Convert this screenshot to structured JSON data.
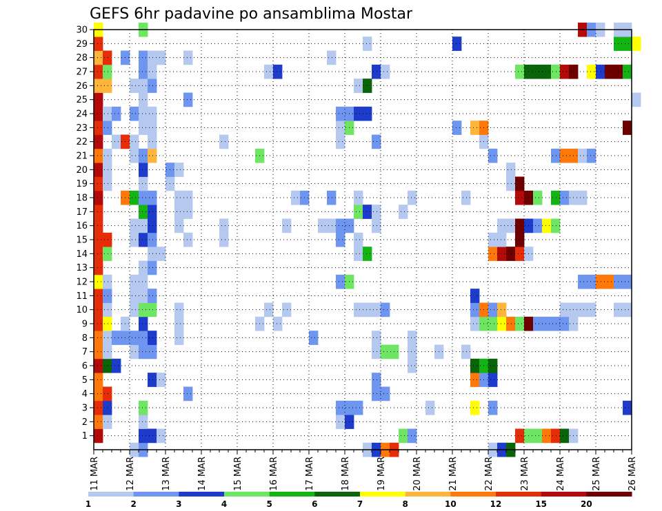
{
  "chart_data": {
    "type": "heatmap",
    "title": "GEFS 6hr padavine po ansamblima Mostar",
    "xlabel": "",
    "ylabel": "",
    "x_tick_labels": [
      "11 MAR",
      "12 MAR",
      "13 MAR",
      "14 MAR",
      "15 MAR",
      "16 MAR",
      "17 MAR",
      "18 MAR",
      "19 MAR",
      "20 MAR",
      "21 MAR",
      "22 MAR",
      "23 MAR",
      "24 MAR",
      "25 MAR",
      "26 MAR"
    ],
    "x_unit": "6-hour steps from 11 MAR 00Z",
    "y_tick_labels": [
      "1",
      "2",
      "3",
      "4",
      "5",
      "6",
      "7",
      "8",
      "9",
      "10",
      "11",
      "12",
      "13",
      "14",
      "15",
      "16",
      "17",
      "18",
      "19",
      "20",
      "21",
      "22",
      "23",
      "24",
      "25",
      "26",
      "27",
      "28",
      "29",
      "30"
    ],
    "y_range": [
      0,
      30
    ],
    "grid": "dotted",
    "legend": {
      "placement": "bottom",
      "thresholds": [
        "1",
        "2",
        "3",
        "4",
        "5",
        "6",
        "7",
        "8",
        "10",
        "12",
        "15",
        "20"
      ],
      "colors": [
        "#b4c8f0",
        "#6e96f0",
        "#1e3ccc",
        "#6ee664",
        "#14b414",
        "#0a640a",
        "#ffff00",
        "#ffb43c",
        "#ff780a",
        "#e62d0a",
        "#b40a0a",
        "#6e0000"
      ]
    },
    "cells": [
      [
        0,
        1,
        11
      ],
      [
        0,
        2,
        9
      ],
      [
        0,
        3,
        10
      ],
      [
        0,
        4,
        9
      ],
      [
        0,
        5,
        9
      ],
      [
        0,
        6,
        11
      ],
      [
        0,
        7,
        9
      ],
      [
        0,
        8,
        9
      ],
      [
        0,
        9,
        10
      ],
      [
        0,
        10,
        10
      ],
      [
        0,
        11,
        10
      ],
      [
        0,
        12,
        7
      ],
      [
        0,
        13,
        10
      ],
      [
        0,
        14,
        10
      ],
      [
        0,
        15,
        10
      ],
      [
        0,
        16,
        10
      ],
      [
        0,
        17,
        10
      ],
      [
        0,
        18,
        11
      ],
      [
        0,
        19,
        10
      ],
      [
        0,
        20,
        11
      ],
      [
        0,
        21,
        9
      ],
      [
        0,
        22,
        11
      ],
      [
        0,
        23,
        10
      ],
      [
        0,
        24,
        11
      ],
      [
        0,
        25,
        11
      ],
      [
        0,
        26,
        8
      ],
      [
        0,
        27,
        10
      ],
      [
        0,
        28,
        8
      ],
      [
        0,
        29,
        10
      ],
      [
        0,
        30,
        7
      ],
      [
        1,
        2,
        1
      ],
      [
        1,
        3,
        3
      ],
      [
        1,
        4,
        10
      ],
      [
        1,
        6,
        6
      ],
      [
        1,
        7,
        1
      ],
      [
        1,
        8,
        1
      ],
      [
        1,
        9,
        7
      ],
      [
        1,
        10,
        1
      ],
      [
        1,
        11,
        2
      ],
      [
        1,
        12,
        1
      ],
      [
        1,
        14,
        4
      ],
      [
        1,
        15,
        10
      ],
      [
        1,
        19,
        1
      ],
      [
        1,
        20,
        1
      ],
      [
        1,
        21,
        1
      ],
      [
        1,
        23,
        2
      ],
      [
        1,
        24,
        1
      ],
      [
        1,
        26,
        8
      ],
      [
        1,
        27,
        4
      ],
      [
        1,
        28,
        10
      ],
      [
        2,
        6,
        3
      ],
      [
        2,
        8,
        2
      ],
      [
        2,
        22,
        1
      ],
      [
        2,
        24,
        2
      ],
      [
        3,
        8,
        2
      ],
      [
        3,
        9,
        1
      ],
      [
        3,
        18,
        9
      ],
      [
        3,
        22,
        10
      ],
      [
        3,
        28,
        2
      ],
      [
        4,
        0,
        1
      ],
      [
        4,
        7,
        1
      ],
      [
        4,
        8,
        2
      ],
      [
        4,
        10,
        1
      ],
      [
        4,
        11,
        1
      ],
      [
        4,
        12,
        1
      ],
      [
        4,
        15,
        1
      ],
      [
        4,
        16,
        1
      ],
      [
        4,
        18,
        5
      ],
      [
        4,
        21,
        1
      ],
      [
        4,
        22,
        1
      ],
      [
        4,
        24,
        2
      ],
      [
        4,
        26,
        1
      ],
      [
        5,
        0,
        2
      ],
      [
        5,
        1,
        3
      ],
      [
        5,
        2,
        1
      ],
      [
        5,
        3,
        4
      ],
      [
        5,
        7,
        2
      ],
      [
        5,
        8,
        2
      ],
      [
        5,
        9,
        3
      ],
      [
        5,
        10,
        4
      ],
      [
        5,
        11,
        1
      ],
      [
        5,
        12,
        1
      ],
      [
        5,
        13,
        1
      ],
      [
        5,
        15,
        3
      ],
      [
        5,
        16,
        1
      ],
      [
        5,
        17,
        5
      ],
      [
        5,
        18,
        2
      ],
      [
        5,
        19,
        1
      ],
      [
        5,
        20,
        3
      ],
      [
        5,
        21,
        2
      ],
      [
        5,
        23,
        1
      ],
      [
        5,
        24,
        1
      ],
      [
        5,
        25,
        1
      ],
      [
        5,
        26,
        1
      ],
      [
        5,
        27,
        2
      ],
      [
        5,
        28,
        2
      ],
      [
        5,
        30,
        4
      ],
      [
        6,
        1,
        3
      ],
      [
        6,
        5,
        3
      ],
      [
        6,
        7,
        2
      ],
      [
        6,
        8,
        3
      ],
      [
        6,
        10,
        4
      ],
      [
        6,
        11,
        2
      ],
      [
        6,
        13,
        2
      ],
      [
        6,
        14,
        1
      ],
      [
        6,
        15,
        2
      ],
      [
        6,
        16,
        3
      ],
      [
        6,
        17,
        3
      ],
      [
        6,
        18,
        2
      ],
      [
        6,
        21,
        8
      ],
      [
        6,
        22,
        1
      ],
      [
        6,
        23,
        1
      ],
      [
        6,
        24,
        1
      ],
      [
        6,
        26,
        2
      ],
      [
        6,
        27,
        1
      ],
      [
        6,
        28,
        1
      ],
      [
        7,
        1,
        1
      ],
      [
        7,
        5,
        1
      ],
      [
        7,
        14,
        1
      ],
      [
        7,
        28,
        1
      ],
      [
        8,
        19,
        1
      ],
      [
        8,
        20,
        2
      ],
      [
        9,
        8,
        1
      ],
      [
        9,
        9,
        1
      ],
      [
        9,
        10,
        1
      ],
      [
        9,
        16,
        1
      ],
      [
        9,
        17,
        1
      ],
      [
        9,
        18,
        1
      ],
      [
        9,
        20,
        1
      ],
      [
        10,
        4,
        2
      ],
      [
        10,
        15,
        1
      ],
      [
        10,
        17,
        1
      ],
      [
        10,
        18,
        1
      ],
      [
        10,
        25,
        2
      ],
      [
        10,
        28,
        1
      ],
      [
        14,
        15,
        1
      ],
      [
        14,
        16,
        1
      ],
      [
        14,
        22,
        1
      ],
      [
        18,
        9,
        1
      ],
      [
        18,
        21,
        4
      ],
      [
        19,
        10,
        1
      ],
      [
        19,
        27,
        1
      ],
      [
        20,
        9,
        1
      ],
      [
        20,
        27,
        3
      ],
      [
        21,
        10,
        1
      ],
      [
        21,
        16,
        1
      ],
      [
        22,
        18,
        1
      ],
      [
        23,
        18,
        2
      ],
      [
        24,
        8,
        2
      ],
      [
        25,
        16,
        1
      ],
      [
        26,
        16,
        1
      ],
      [
        26,
        18,
        2
      ],
      [
        26,
        28,
        1
      ],
      [
        27,
        2,
        1
      ],
      [
        27,
        3,
        2
      ],
      [
        27,
        12,
        2
      ],
      [
        27,
        15,
        2
      ],
      [
        27,
        16,
        2
      ],
      [
        27,
        22,
        1
      ],
      [
        27,
        23,
        1
      ],
      [
        27,
        24,
        2
      ],
      [
        28,
        2,
        3
      ],
      [
        28,
        3,
        2
      ],
      [
        28,
        12,
        4
      ],
      [
        28,
        16,
        2
      ],
      [
        28,
        23,
        4
      ],
      [
        28,
        24,
        2
      ],
      [
        29,
        3,
        2
      ],
      [
        29,
        10,
        1
      ],
      [
        29,
        14,
        1
      ],
      [
        29,
        15,
        1
      ],
      [
        29,
        17,
        4
      ],
      [
        29,
        18,
        1
      ],
      [
        29,
        24,
        3
      ],
      [
        29,
        26,
        1
      ],
      [
        30,
        0,
        1
      ],
      [
        30,
        10,
        1
      ],
      [
        30,
        14,
        5
      ],
      [
        30,
        17,
        3
      ],
      [
        30,
        24,
        3
      ],
      [
        30,
        26,
        6
      ],
      [
        30,
        29,
        1
      ],
      [
        31,
        0,
        3
      ],
      [
        31,
        4,
        2
      ],
      [
        31,
        5,
        2
      ],
      [
        31,
        7,
        1
      ],
      [
        31,
        8,
        1
      ],
      [
        31,
        10,
        1
      ],
      [
        31,
        16,
        1
      ],
      [
        31,
        17,
        1
      ],
      [
        31,
        22,
        2
      ],
      [
        31,
        27,
        3
      ],
      [
        32,
        0,
        9
      ],
      [
        32,
        4,
        2
      ],
      [
        32,
        7,
        4
      ],
      [
        32,
        10,
        2
      ],
      [
        32,
        27,
        1
      ],
      [
        33,
        0,
        10
      ],
      [
        33,
        7,
        4
      ],
      [
        34,
        1,
        4
      ],
      [
        34,
        17,
        1
      ],
      [
        35,
        1,
        2
      ],
      [
        35,
        6,
        1
      ],
      [
        35,
        7,
        1
      ],
      [
        35,
        8,
        1
      ],
      [
        35,
        18,
        1
      ],
      [
        37,
        3,
        1
      ],
      [
        38,
        7,
        1
      ],
      [
        40,
        23,
        2
      ],
      [
        40,
        29,
        3
      ],
      [
        41,
        7,
        1
      ],
      [
        41,
        18,
        1
      ],
      [
        42,
        3,
        7
      ],
      [
        42,
        5,
        9
      ],
      [
        42,
        6,
        6
      ],
      [
        42,
        9,
        1
      ],
      [
        42,
        10,
        2
      ],
      [
        42,
        11,
        3
      ],
      [
        42,
        23,
        8
      ],
      [
        43,
        5,
        2
      ],
      [
        43,
        6,
        5
      ],
      [
        43,
        9,
        4
      ],
      [
        43,
        10,
        9
      ],
      [
        43,
        22,
        1
      ],
      [
        43,
        23,
        9
      ],
      [
        44,
        0,
        1
      ],
      [
        44,
        3,
        2
      ],
      [
        44,
        5,
        3
      ],
      [
        44,
        6,
        6
      ],
      [
        44,
        9,
        4
      ],
      [
        44,
        10,
        2
      ],
      [
        44,
        14,
        9
      ],
      [
        44,
        15,
        1
      ],
      [
        44,
        21,
        2
      ],
      [
        45,
        0,
        3
      ],
      [
        45,
        9,
        7
      ],
      [
        45,
        10,
        8
      ],
      [
        45,
        14,
        11
      ],
      [
        45,
        15,
        1
      ],
      [
        45,
        16,
        1
      ],
      [
        46,
        0,
        6
      ],
      [
        46,
        9,
        9
      ],
      [
        46,
        14,
        12
      ],
      [
        46,
        16,
        1
      ],
      [
        46,
        19,
        1
      ],
      [
        46,
        20,
        1
      ],
      [
        47,
        1,
        10
      ],
      [
        47,
        9,
        4
      ],
      [
        47,
        14,
        10
      ],
      [
        47,
        15,
        12
      ],
      [
        47,
        16,
        12
      ],
      [
        47,
        18,
        11
      ],
      [
        47,
        19,
        12
      ],
      [
        47,
        27,
        4
      ],
      [
        48,
        1,
        4
      ],
      [
        48,
        9,
        12
      ],
      [
        48,
        14,
        1
      ],
      [
        48,
        16,
        3
      ],
      [
        48,
        18,
        12
      ],
      [
        48,
        27,
        6
      ],
      [
        49,
        1,
        4
      ],
      [
        49,
        9,
        2
      ],
      [
        49,
        16,
        2
      ],
      [
        49,
        18,
        4
      ],
      [
        49,
        27,
        6
      ],
      [
        50,
        1,
        9
      ],
      [
        50,
        9,
        2
      ],
      [
        50,
        16,
        7
      ],
      [
        50,
        27,
        6
      ],
      [
        51,
        1,
        10
      ],
      [
        51,
        9,
        2
      ],
      [
        51,
        16,
        4
      ],
      [
        51,
        18,
        5
      ],
      [
        51,
        21,
        2
      ],
      [
        51,
        27,
        4
      ],
      [
        52,
        1,
        6
      ],
      [
        52,
        9,
        2
      ],
      [
        52,
        10,
        1
      ],
      [
        52,
        18,
        2
      ],
      [
        52,
        21,
        9
      ],
      [
        52,
        27,
        11
      ],
      [
        53,
        1,
        1
      ],
      [
        53,
        9,
        1
      ],
      [
        53,
        10,
        1
      ],
      [
        53,
        18,
        1
      ],
      [
        53,
        21,
        9
      ],
      [
        53,
        27,
        12
      ],
      [
        54,
        10,
        1
      ],
      [
        54,
        12,
        2
      ],
      [
        54,
        18,
        1
      ],
      [
        54,
        21,
        1
      ],
      [
        54,
        30,
        11
      ],
      [
        55,
        10,
        1
      ],
      [
        55,
        12,
        2
      ],
      [
        55,
        21,
        2
      ],
      [
        55,
        27,
        7
      ],
      [
        55,
        30,
        2
      ],
      [
        56,
        12,
        9
      ],
      [
        56,
        27,
        3
      ],
      [
        56,
        30,
        1
      ],
      [
        57,
        12,
        9
      ],
      [
        57,
        27,
        12
      ],
      [
        58,
        10,
        1
      ],
      [
        58,
        12,
        2
      ],
      [
        58,
        27,
        12
      ],
      [
        58,
        29,
        5
      ],
      [
        58,
        30,
        1
      ],
      [
        59,
        3,
        3
      ],
      [
        59,
        10,
        1
      ],
      [
        59,
        12,
        2
      ],
      [
        59,
        23,
        12
      ],
      [
        59,
        27,
        5
      ],
      [
        59,
        29,
        5
      ],
      [
        59,
        30,
        1
      ],
      [
        60,
        25,
        1
      ],
      [
        60,
        29,
        7
      ]
    ]
  }
}
